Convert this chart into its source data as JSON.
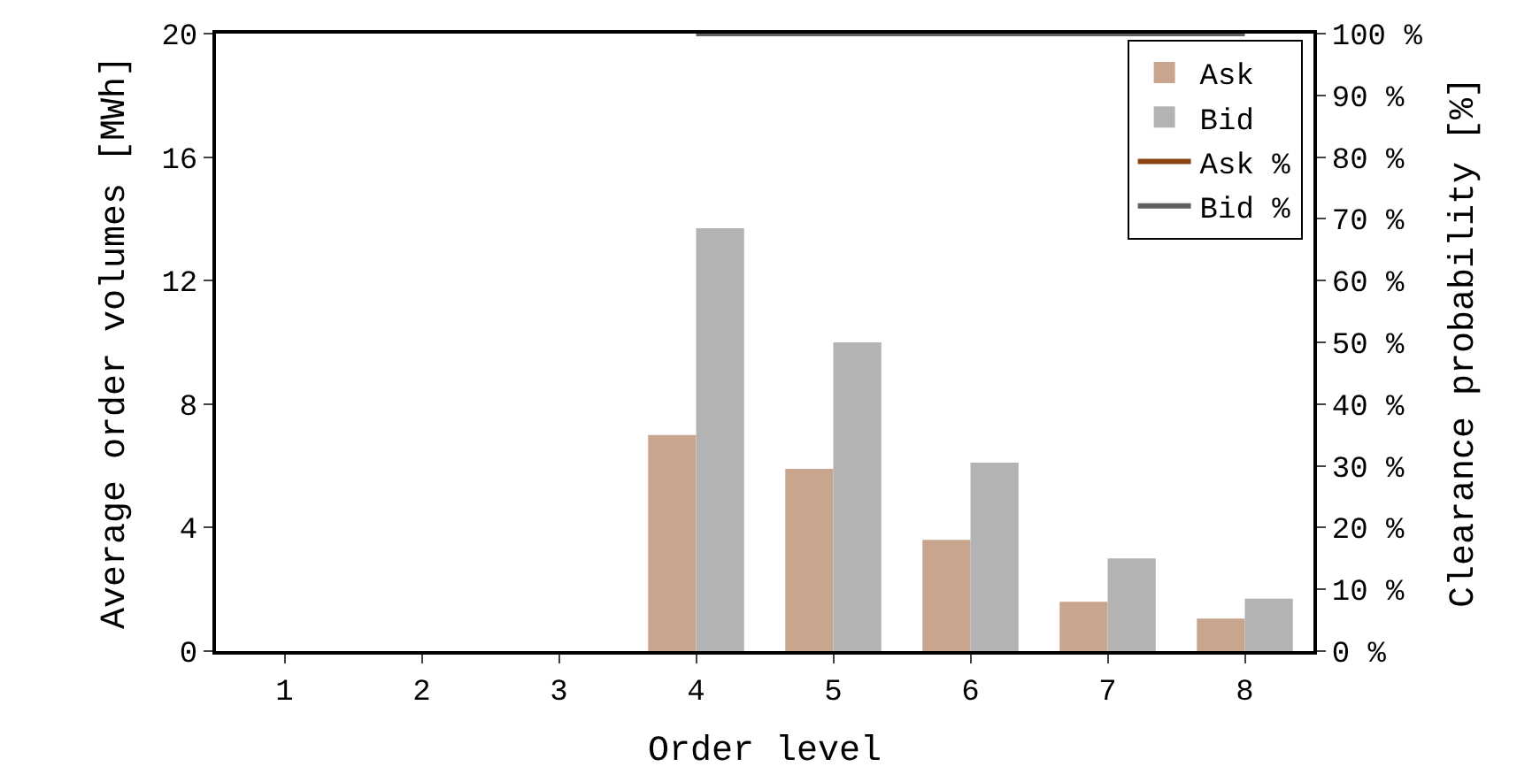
{
  "chart_data": {
    "type": "bar",
    "xlabel": "Order level",
    "ylabel": "Average order volumes [MWh]",
    "y2label": "Clearance probability [%]",
    "categories": [
      "1",
      "2",
      "3",
      "4",
      "5",
      "6",
      "7",
      "8"
    ],
    "series": [
      {
        "name": "Ask",
        "color": "#c8a68e",
        "values": [
          0,
          0,
          0,
          7.0,
          5.9,
          3.6,
          1.6,
          1.05
        ]
      },
      {
        "name": "Bid",
        "color": "#b3b3b3",
        "values": [
          0,
          0,
          0,
          13.7,
          10.0,
          6.1,
          3.0,
          1.7
        ]
      },
      {
        "name": "Ask %",
        "type": "line",
        "axis": "y2",
        "color": "#8b4513",
        "values": [
          null,
          null,
          null,
          null,
          null,
          null,
          null,
          null
        ]
      },
      {
        "name": "Bid %",
        "type": "line",
        "axis": "y2",
        "color": "#606060",
        "values": [
          null,
          null,
          null,
          100,
          100,
          100,
          100,
          100
        ]
      }
    ],
    "ylim": [
      0,
      20
    ],
    "yticks": [
      0,
      4,
      8,
      12,
      16,
      20
    ],
    "y2lim": [
      0,
      100
    ],
    "y2ticks": [
      {
        "value": 0,
        "label": "0 %"
      },
      {
        "value": 10,
        "label": "10 %"
      },
      {
        "value": 20,
        "label": "20 %"
      },
      {
        "value": 30,
        "label": "30 %"
      },
      {
        "value": 40,
        "label": "40 %"
      },
      {
        "value": 50,
        "label": "50 %"
      },
      {
        "value": 60,
        "label": "60 %"
      },
      {
        "value": 70,
        "label": "70 %"
      },
      {
        "value": 80,
        "label": "80 %"
      },
      {
        "value": 90,
        "label": "90 %"
      },
      {
        "value": 100,
        "label": "100 %"
      }
    ],
    "legend": "top right",
    "marker": "none"
  }
}
